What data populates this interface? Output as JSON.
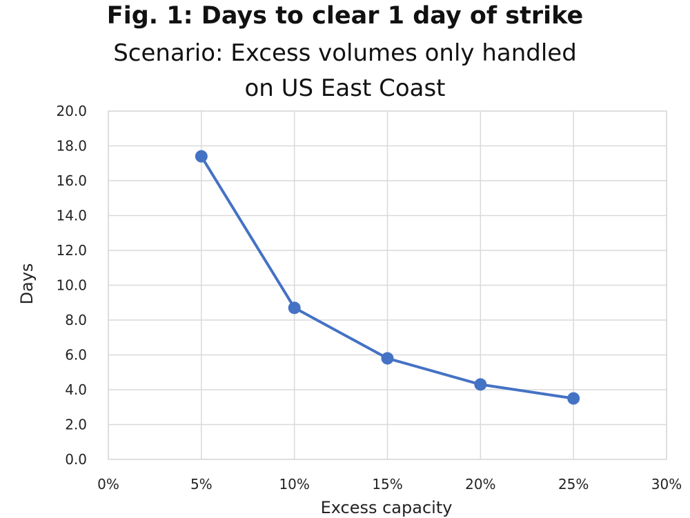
{
  "chart_data": {
    "type": "line",
    "title": "Fig. 1: Days to clear 1 day of strike",
    "subtitle_lines": [
      "Scenario: Excess volumes only handled",
      "on US East Coast"
    ],
    "xlabel": "Excess capacity",
    "ylabel": "Days",
    "xlim": [
      0,
      30
    ],
    "ylim": [
      0,
      20
    ],
    "x_ticks": [
      "0%",
      "5%",
      "10%",
      "15%",
      "20%",
      "25%",
      "30%"
    ],
    "x_tick_values": [
      0,
      5,
      10,
      15,
      20,
      25,
      30
    ],
    "y_ticks": [
      "0.0",
      "2.0",
      "4.0",
      "6.0",
      "8.0",
      "10.0",
      "12.0",
      "14.0",
      "16.0",
      "18.0",
      "20.0"
    ],
    "y_tick_values": [
      0,
      2,
      4,
      6,
      8,
      10,
      12,
      14,
      16,
      18,
      20
    ],
    "grid": true,
    "series": [
      {
        "x": [
          5,
          10,
          15,
          20,
          25
        ],
        "values": [
          17.4,
          8.7,
          5.8,
          4.3,
          3.5
        ],
        "color": "#4472C4"
      }
    ]
  }
}
